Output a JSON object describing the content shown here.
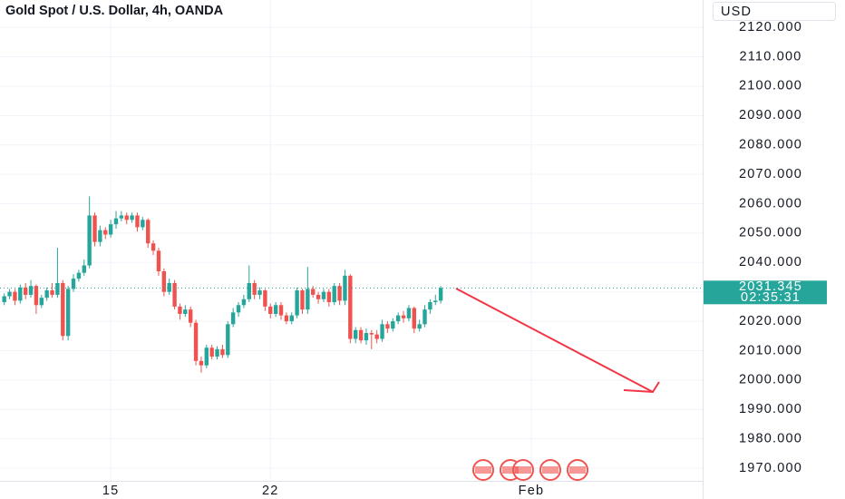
{
  "chart_data": {
    "type": "candlestick",
    "title": "Gold Spot / U.S. Dollar, 4h, OANDA",
    "currency": "USD",
    "up_color": "#26a69a",
    "down_color": "#ef5350",
    "grid": true,
    "xlim": [
      -0.8,
      131.2
    ],
    "xticks": [
      {
        "value": 20,
        "label": "15"
      },
      {
        "value": 50,
        "label": "22"
      },
      {
        "value": 99,
        "label": "Feb"
      }
    ],
    "ylim": [
      1965.7,
      2129.3
    ],
    "yticks": [
      {
        "value": 1970,
        "label": "1970.000"
      },
      {
        "value": 1980,
        "label": "1980.000"
      },
      {
        "value": 1990,
        "label": "1990.000"
      },
      {
        "value": 2000,
        "label": "2000.000"
      },
      {
        "value": 2010,
        "label": "2010.000"
      },
      {
        "value": 2020,
        "label": "2020.000"
      },
      {
        "value": 2030,
        "label": "2030.000"
      },
      {
        "value": 2040,
        "label": "2040.000"
      },
      {
        "value": 2050,
        "label": "2050.000"
      },
      {
        "value": 2060,
        "label": "2060.000"
      },
      {
        "value": 2070,
        "label": "2070.000"
      },
      {
        "value": 2080,
        "label": "2080.000"
      },
      {
        "value": 2090,
        "label": "2090.000"
      },
      {
        "value": 2100,
        "label": "2100.000"
      },
      {
        "value": 2110,
        "label": "2110.000"
      },
      {
        "value": 2120,
        "label": "2120.000"
      }
    ],
    "last_price": 2031.345,
    "countdown": "02:35:31",
    "open": [
      2026.5,
      2028.5,
      2030.0,
      2027.0,
      2031.5,
      2029.0,
      2032.0,
      2025.5,
      2028.0,
      2030.5,
      2029.0,
      2033.0,
      2015.0,
      2031.0,
      2034.5,
      2036.5,
      2039.0,
      2056.0,
      2047.0,
      2051.0,
      2049.5,
      2053.0,
      2055.0,
      2056.0,
      2054.5,
      2056.0,
      2052.0,
      2054.5,
      2046.5,
      2044.0,
      2037.0,
      2030.0,
      2033.0,
      2025.0,
      2022.5,
      2024.0,
      2019.5,
      2006.5,
      2005.0,
      2011.0,
      2008.0,
      2010.5,
      2008.5,
      2019.0,
      2023.0,
      2025.5,
      2027.5,
      2033.0,
      2029.0,
      2030.5,
      2025.0,
      2022.5,
      2025.5,
      2022.0,
      2020.0,
      2022.0,
      2030.5,
      2024.0,
      2031.0,
      2029.0,
      2027.5,
      2030.0,
      2026.5,
      2032.0,
      2027.0,
      2035.5,
      2014.0,
      2017.0,
      2013.5,
      2016.0,
      2015.5,
      2014.0,
      2019.0,
      2017.5,
      2020.0,
      2022.0,
      2021.0,
      2024.5,
      2017.5,
      2019.0,
      2024.0,
      2026.5,
      2027.0
    ],
    "high": [
      2029.5,
      2031.0,
      2031.0,
      2032.5,
      2033.0,
      2034.0,
      2032.5,
      2029.0,
      2031.5,
      2033.0,
      2045.0,
      2034.0,
      2032.0,
      2036.0,
      2037.5,
      2041.0,
      2062.5,
      2057.0,
      2052.5,
      2052.0,
      2054.5,
      2057.5,
      2057.5,
      2057.0,
      2057.0,
      2057.0,
      2055.5,
      2055.0,
      2047.5,
      2045.0,
      2038.0,
      2034.5,
      2034.0,
      2026.0,
      2025.5,
      2025.0,
      2020.5,
      2008.0,
      2012.0,
      2012.0,
      2011.5,
      2012.0,
      2020.0,
      2024.5,
      2026.5,
      2029.0,
      2039.0,
      2034.0,
      2031.5,
      2031.0,
      2026.0,
      2026.5,
      2026.5,
      2023.0,
      2023.0,
      2031.5,
      2031.0,
      2038.5,
      2032.0,
      2030.0,
      2031.0,
      2031.0,
      2033.0,
      2033.0,
      2037.5,
      2036.0,
      2018.0,
      2018.0,
      2017.5,
      2017.0,
      2017.0,
      2020.5,
      2020.0,
      2021.0,
      2023.0,
      2023.5,
      2025.5,
      2025.0,
      2020.5,
      2025.5,
      2027.5,
      2029.0,
      2032.0
    ],
    "low": [
      2025.5,
      2027.5,
      2025.5,
      2026.0,
      2027.5,
      2028.0,
      2022.5,
      2024.5,
      2027.0,
      2028.0,
      2028.0,
      2013.5,
      2013.5,
      2030.0,
      2033.5,
      2035.5,
      2038.0,
      2045.5,
      2045.5,
      2048.0,
      2048.5,
      2051.5,
      2054.0,
      2053.0,
      2053.5,
      2050.5,
      2051.0,
      2045.0,
      2042.5,
      2035.5,
      2028.5,
      2029.0,
      2024.0,
      2020.5,
      2021.5,
      2018.0,
      2005.0,
      2002.5,
      2004.0,
      2007.0,
      2007.0,
      2007.5,
      2007.5,
      2018.0,
      2021.5,
      2024.5,
      2026.5,
      2027.5,
      2027.5,
      2023.5,
      2021.0,
      2021.5,
      2020.5,
      2019.0,
      2019.0,
      2021.0,
      2022.5,
      2022.5,
      2028.0,
      2026.0,
      2026.5,
      2025.0,
      2025.5,
      2025.5,
      2025.5,
      2012.5,
      2012.5,
      2012.5,
      2012.0,
      2010.5,
      2012.5,
      2013.0,
      2016.0,
      2016.5,
      2019.0,
      2019.5,
      2020.0,
      2016.0,
      2016.5,
      2018.0,
      2022.5,
      2025.5,
      2026.0
    ],
    "close": [
      2028.5,
      2030.0,
      2027.0,
      2031.5,
      2029.0,
      2032.0,
      2025.5,
      2028.0,
      2030.5,
      2029.0,
      2033.0,
      2015.0,
      2031.0,
      2034.5,
      2036.5,
      2039.0,
      2056.0,
      2047.0,
      2051.0,
      2049.5,
      2053.0,
      2055.0,
      2056.0,
      2054.5,
      2056.0,
      2052.0,
      2054.5,
      2046.5,
      2044.0,
      2037.0,
      2030.0,
      2033.0,
      2025.0,
      2022.5,
      2024.0,
      2019.5,
      2006.5,
      2005.0,
      2011.0,
      2008.0,
      2010.5,
      2008.5,
      2019.0,
      2023.0,
      2025.5,
      2027.5,
      2033.0,
      2029.0,
      2030.5,
      2025.0,
      2022.5,
      2025.5,
      2022.0,
      2020.0,
      2022.0,
      2030.5,
      2024.0,
      2031.0,
      2029.0,
      2027.5,
      2030.0,
      2026.5,
      2032.0,
      2027.0,
      2035.5,
      2014.0,
      2017.0,
      2013.5,
      2016.0,
      2015.5,
      2014.0,
      2019.0,
      2017.5,
      2020.0,
      2022.0,
      2021.0,
      2024.5,
      2017.5,
      2019.0,
      2024.0,
      2026.5,
      2027.0,
      2031.345
    ]
  }
}
